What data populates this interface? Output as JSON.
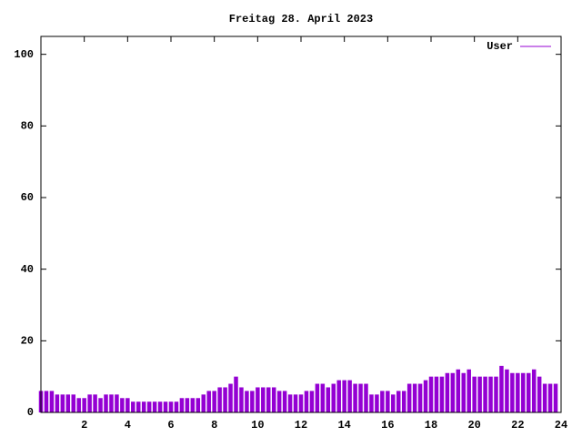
{
  "chart_data": {
    "type": "impulse",
    "title": "Freitag 28. April 2023",
    "x": [
      0,
      0.25,
      0.5,
      0.75,
      1,
      1.25,
      1.5,
      1.75,
      2,
      2.25,
      2.5,
      2.75,
      3,
      3.25,
      3.5,
      3.75,
      4,
      4.25,
      4.5,
      4.75,
      5,
      5.25,
      5.5,
      5.75,
      6,
      6.25,
      6.5,
      6.75,
      7,
      7.25,
      7.5,
      7.75,
      8,
      8.25,
      8.5,
      8.75,
      9,
      9.25,
      9.5,
      9.75,
      10,
      10.25,
      10.5,
      10.75,
      11,
      11.25,
      11.5,
      11.75,
      12,
      12.25,
      12.5,
      12.75,
      13,
      13.25,
      13.5,
      13.75,
      14,
      14.25,
      14.5,
      14.75,
      15,
      15.25,
      15.5,
      15.75,
      16,
      16.25,
      16.5,
      16.75,
      17,
      17.25,
      17.5,
      17.75,
      18,
      18.25,
      18.5,
      18.75,
      19,
      19.25,
      19.5,
      19.75,
      20,
      20.25,
      20.5,
      20.75,
      21,
      21.25,
      21.5,
      21.75,
      22,
      22.25,
      22.5,
      22.75,
      23,
      23.25,
      23.5,
      23.75
    ],
    "series": [
      {
        "name": "User",
        "color": "#9400d3",
        "values": [
          6,
          6,
          6,
          5,
          5,
          5,
          5,
          4,
          4,
          5,
          5,
          4,
          5,
          5,
          5,
          4,
          4,
          3,
          3,
          3,
          3,
          3,
          3,
          3,
          3,
          3,
          4,
          4,
          4,
          4,
          5,
          6,
          6,
          7,
          7,
          8,
          10,
          7,
          6,
          6,
          7,
          7,
          7,
          7,
          6,
          6,
          5,
          5,
          5,
          6,
          6,
          8,
          8,
          7,
          8,
          9,
          9,
          9,
          8,
          8,
          8,
          5,
          5,
          6,
          6,
          5,
          6,
          6,
          8,
          8,
          8,
          9,
          10,
          10,
          10,
          11,
          11,
          12,
          11,
          12,
          10,
          10,
          10,
          10,
          10,
          13,
          12,
          11,
          11,
          11,
          11,
          12,
          10,
          8,
          8,
          8
        ]
      }
    ],
    "xlim": [
      0,
      24
    ],
    "xticks": [
      2,
      4,
      6,
      8,
      10,
      12,
      14,
      16,
      18,
      20,
      22,
      24
    ],
    "ylim": [
      0,
      105
    ],
    "yticks": [
      0,
      20,
      40,
      60,
      80,
      100
    ],
    "legend": "top-right"
  }
}
